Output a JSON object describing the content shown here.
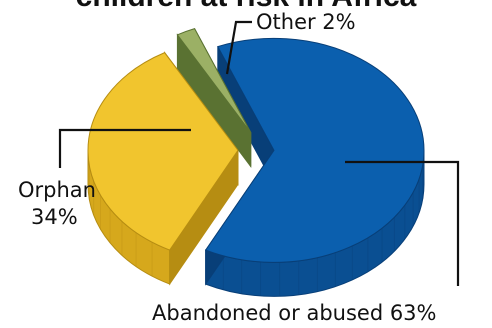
{
  "chart_data": {
    "type": "pie",
    "style": "3d-exploded",
    "title": "children at risk in Africa",
    "legend": "none",
    "slices": [
      {
        "label": "Abandoned or abused",
        "value": 63,
        "label_text": "Abandoned or abused 63%",
        "color": "#0b5fae",
        "side_color": "#0a4f92",
        "edge_color": "#083f78"
      },
      {
        "label": "Orphan",
        "value": 34,
        "label_lines": [
          "Orphan",
          "34%"
        ],
        "color": "#f1c52e",
        "side_color": "#d6a81c",
        "edge_color": "#b68d12"
      },
      {
        "label": "Other",
        "value": 2,
        "label_text": "Other 2%",
        "color": "#9bb065",
        "side_color": "#6f8a3e",
        "edge_color": "#5a7232"
      }
    ]
  }
}
